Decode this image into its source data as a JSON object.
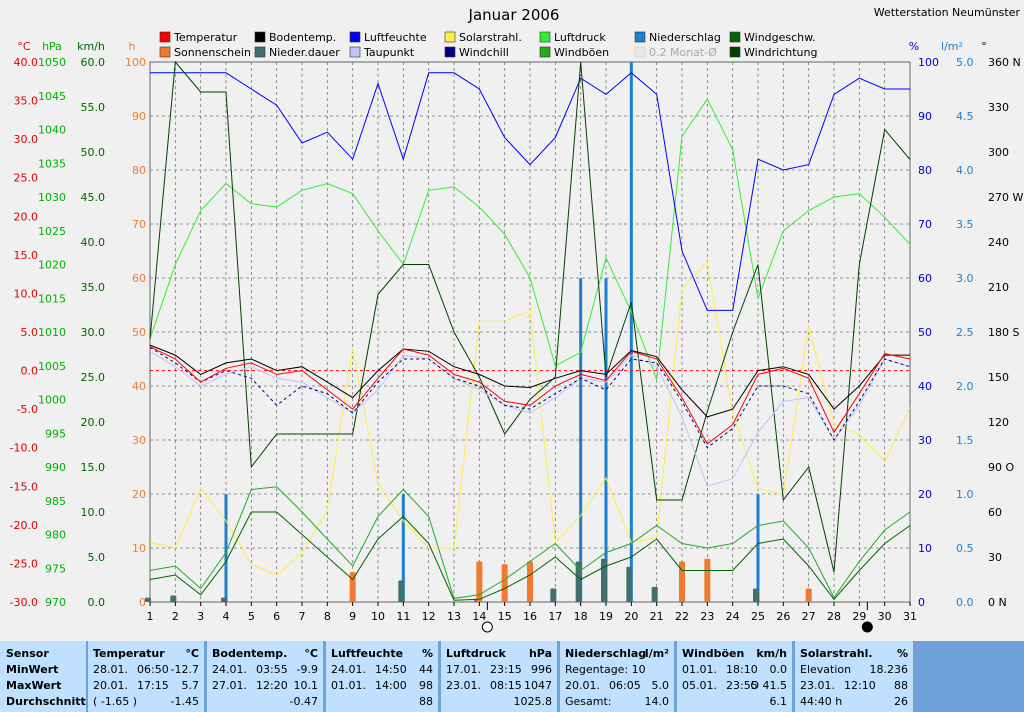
{
  "title": "Januar 2006",
  "station": "Wetterstation Neumünster",
  "left_axes": [
    {
      "unit": "°C",
      "color": "#e00000",
      "ticks": [
        "40.0",
        "35.0",
        "30.0",
        "25.0",
        "20.0",
        "15.0",
        "10.0",
        "5.0",
        "0.0",
        "-5.0",
        "-10.0",
        "-15.0",
        "-20.0",
        "-25.0",
        "-30.0"
      ]
    },
    {
      "unit": "hPa",
      "color": "#00b000",
      "ticks": [
        "1050",
        "1045",
        "1040",
        "1035",
        "1030",
        "1025",
        "1020",
        "1015",
        "1010",
        "1005",
        "1000",
        "995",
        "990",
        "985",
        "980",
        "975",
        "970"
      ]
    },
    {
      "unit": "km/h",
      "color": "#006400",
      "ticks": [
        "60.0",
        "55.0",
        "50.0",
        "45.0",
        "40.0",
        "35.0",
        "30.0",
        "25.0",
        "20.0",
        "15.0",
        "10.0",
        "5.0",
        "0.0"
      ]
    },
    {
      "unit": "h",
      "color": "#f07a30",
      "ticks": [
        "100",
        "90",
        "80",
        "70",
        "60",
        "50",
        "40",
        "30",
        "20",
        "10",
        "0"
      ]
    }
  ],
  "right_axes": [
    {
      "unit": "%",
      "color": "#0000cc",
      "ticks": [
        "100",
        "90",
        "80",
        "70",
        "60",
        "50",
        "40",
        "30",
        "20",
        "10",
        "0"
      ]
    },
    {
      "unit": "l/m²",
      "color": "#1e7fd0",
      "ticks": [
        "5.0",
        "4.5",
        "4.0",
        "3.5",
        "3.0",
        "2.5",
        "2.0",
        "1.5",
        "1.0",
        "0.5",
        "0.0"
      ]
    },
    {
      "unit": "°",
      "color": "#000000",
      "ticks": [
        "360 N",
        "330",
        "300",
        "270 W",
        "240",
        "210",
        "180 S",
        "150",
        "120",
        "90 O",
        "60",
        "30",
        "0 N"
      ]
    }
  ],
  "legend": [
    {
      "label": "Temperatur",
      "color": "#ff0000"
    },
    {
      "label": "Sonnenschein",
      "color": "#f07a30"
    },
    {
      "label": "Bodentemp.",
      "color": "#000000"
    },
    {
      "label": "Nieder.dauer",
      "color": "#407070"
    },
    {
      "label": "Luftfeuchte",
      "color": "#0000ff"
    },
    {
      "label": "Taupunkt",
      "color": "#c0c0ff"
    },
    {
      "label": "Solarstrahl.",
      "color": "#ffee44"
    },
    {
      "label": "Windchill",
      "color": "#000080"
    },
    {
      "label": "Luftdruck",
      "color": "#33ee33"
    },
    {
      "label": "Windböen",
      "color": "#22aa22"
    },
    {
      "label": "Niederschlag",
      "color": "#1e7fd0"
    },
    {
      "label": "0.2 Monat-Ø",
      "color": "#e8e8e8"
    },
    {
      "label": "Windgeschw.",
      "color": "#006400"
    },
    {
      "label": "Windrichtung",
      "color": "#004000"
    }
  ],
  "chart_data": {
    "type": "line",
    "title": "Januar 2006",
    "x": [
      1,
      2,
      3,
      4,
      5,
      6,
      7,
      8,
      9,
      10,
      11,
      12,
      13,
      14,
      15,
      16,
      17,
      18,
      19,
      20,
      21,
      22,
      23,
      24,
      25,
      26,
      27,
      28,
      29,
      30,
      31
    ],
    "xlim": [
      1,
      31
    ],
    "series": [
      {
        "name": "Temperatur",
        "unit": "°C",
        "axis": "temp",
        "ylim": [
          -30,
          40
        ],
        "color": "#ff0000",
        "values": [
          3.1,
          1.5,
          -1.5,
          0.3,
          1.0,
          -0.5,
          0.0,
          -2.5,
          -5.0,
          -1.0,
          2.8,
          2.0,
          -0.5,
          -1.5,
          -4.0,
          -4.5,
          -2.0,
          -0.5,
          -1.3,
          2.5,
          1.5,
          -3.5,
          -9.5,
          -7.0,
          -0.5,
          0.3,
          -1.0,
          -8.0,
          -3.0,
          2.2,
          1.5
        ]
      },
      {
        "name": "Bodentemp.",
        "unit": "°C",
        "axis": "temp",
        "ylim": [
          -30,
          40
        ],
        "color": "#000000",
        "values": [
          3.3,
          2.0,
          -0.5,
          1.0,
          1.5,
          0.0,
          0.5,
          -1.5,
          -3.5,
          0.0,
          2.8,
          2.5,
          0.5,
          -0.5,
          -2.0,
          -2.2,
          -1.0,
          0.0,
          -0.5,
          2.6,
          1.8,
          -2.5,
          -6.0,
          -5.0,
          0.0,
          0.5,
          -0.5,
          -5.0,
          -2.0,
          2.0,
          2.0
        ]
      },
      {
        "name": "Windchill",
        "unit": "°C",
        "axis": "temp",
        "ylim": [
          -30,
          40
        ],
        "color": "#000080",
        "values": [
          3.0,
          1.0,
          -1.5,
          0.0,
          -1.0,
          -4.5,
          -2.0,
          -3.0,
          -5.5,
          -1.5,
          1.5,
          1.5,
          -1.0,
          -2.0,
          -4.5,
          -5.0,
          -3.0,
          -1.0,
          -2.5,
          1.5,
          1.0,
          -4.0,
          -10.0,
          -7.5,
          -2.0,
          -2.0,
          -3.0,
          -9.0,
          -4.0,
          1.5,
          0.5
        ]
      },
      {
        "name": "Taupunkt",
        "unit": "°C",
        "axis": "temp",
        "ylim": [
          -30,
          40
        ],
        "color": "#c0c0ff",
        "values": [
          2.5,
          0.5,
          -2.0,
          -0.5,
          0.5,
          -1.0,
          -1.5,
          -3.5,
          -5.5,
          -2.5,
          2.0,
          1.5,
          -1.0,
          -2.5,
          -4.5,
          -5.5,
          -3.5,
          -1.0,
          -1.5,
          2.0,
          0.5,
          -6.0,
          -15.0,
          -14.0,
          -8.0,
          -4.0,
          -3.5,
          -9.0,
          -4.5,
          1.5,
          0.5
        ]
      },
      {
        "name": "Luftfeuchte",
        "unit": "%",
        "axis": "humidity",
        "ylim": [
          0,
          100
        ],
        "color": "#0000ff",
        "values": [
          98,
          98,
          98,
          98,
          95,
          92,
          85,
          87,
          82,
          96,
          82,
          98,
          98,
          95,
          86,
          81,
          86,
          97,
          94,
          98,
          94,
          65,
          54,
          54,
          82,
          80,
          81,
          94,
          97,
          95,
          95
        ]
      },
      {
        "name": "Luftdruck",
        "unit": "hPa",
        "axis": "pressure",
        "ylim": [
          970,
          1050
        ],
        "color": "#33ee33",
        "values": [
          1009,
          1020,
          1028,
          1032,
          1029,
          1028.5,
          1031,
          1032,
          1030.5,
          1025,
          1020,
          1031,
          1031.5,
          1028.5,
          1024.5,
          1018,
          1005,
          1007,
          1021,
          1013,
          1003,
          1039,
          1044.5,
          1037,
          1015,
          1025,
          1028,
          1030,
          1030.5,
          1027,
          1023
        ]
      },
      {
        "name": "Solarstrahl.",
        "unit": "%",
        "axis": "humidity",
        "ylim": [
          0,
          100
        ],
        "color": "#ffee44",
        "values": [
          11,
          10,
          21,
          15,
          7,
          5,
          9,
          17,
          47,
          22,
          15,
          10,
          10,
          52,
          52,
          54,
          11,
          16,
          23,
          11,
          12,
          58,
          63,
          35,
          21,
          20,
          51,
          33,
          31,
          26,
          36
        ]
      },
      {
        "name": "Windgeschw.",
        "unit": "km/h",
        "axis": "wind",
        "ylim": [
          0,
          60
        ],
        "color": "#006400",
        "values": [
          2.5,
          3.0,
          0.8,
          4.5,
          10.0,
          10.0,
          7.5,
          5.0,
          2.5,
          7.0,
          9.5,
          6.5,
          0.2,
          0.3,
          1.5,
          3.0,
          5.0,
          2.5,
          4.0,
          5.0,
          7.0,
          3.5,
          3.5,
          3.5,
          6.5,
          7.0,
          4.0,
          0.3,
          3.5,
          6.5,
          8.5
        ]
      },
      {
        "name": "Windböen",
        "unit": "km/h",
        "axis": "wind",
        "ylim": [
          0,
          60
        ],
        "color": "#22aa22",
        "values": [
          3.5,
          4.0,
          1.5,
          5.5,
          12.5,
          12.8,
          10.0,
          7.0,
          4.0,
          9.5,
          12.5,
          9.5,
          0.4,
          0.8,
          2.5,
          4.5,
          6.5,
          3.5,
          5.5,
          6.5,
          8.5,
          6.5,
          6.0,
          6.5,
          8.5,
          9.0,
          6.0,
          0.5,
          4.5,
          8.0,
          10.0
        ]
      },
      {
        "name": "Windrichtung",
        "unit": "°",
        "axis": "direction",
        "ylim": [
          0,
          360
        ],
        "color": "#004000",
        "values": [
          175,
          360,
          340,
          340,
          90,
          112,
          112,
          112,
          112,
          205,
          225,
          225,
          180,
          150,
          112,
          135,
          150,
          360,
          150,
          200,
          68,
          68,
          127,
          180,
          225,
          68,
          90,
          20,
          225,
          315,
          295
        ]
      },
      {
        "name": "Niederschlag",
        "unit": "l/m²",
        "axis": "precip",
        "ylim": [
          0,
          5
        ],
        "color": "#1e7fd0",
        "type": "bar",
        "values": [
          0,
          0,
          0,
          1.0,
          0,
          0,
          0,
          0,
          0,
          0,
          1.0,
          0,
          0,
          0,
          0,
          0,
          0,
          3.0,
          3.0,
          5.0,
          0,
          0,
          0,
          0,
          1.0,
          0,
          0,
          0,
          0,
          0,
          0
        ]
      },
      {
        "name": "Nieder.dauer",
        "unit": "h",
        "axis": "hours",
        "ylim": [
          0,
          100
        ],
        "color": "#407070",
        "type": "bar",
        "values": [
          0.8,
          1.2,
          0,
          0.8,
          0,
          0,
          0,
          0,
          0,
          0,
          4,
          0,
          0,
          0.6,
          0,
          0,
          2.5,
          7.5,
          8,
          6.5,
          2.8,
          0,
          0,
          0,
          2.5,
          0,
          0,
          0,
          0,
          0,
          0
        ]
      },
      {
        "name": "Sonnenschein",
        "unit": "h",
        "axis": "hours",
        "ylim": [
          0,
          100
        ],
        "color": "#f07a30",
        "type": "bar",
        "values": [
          0,
          0,
          0,
          0,
          0,
          0,
          0,
          0,
          5.5,
          0,
          0,
          0,
          0,
          7.5,
          7,
          7.5,
          0,
          0,
          0,
          0,
          0,
          7.5,
          8,
          0,
          0,
          0,
          2.5,
          0,
          0,
          0,
          0
        ]
      }
    ],
    "reference_line": {
      "value": 0,
      "axis": "temp",
      "color": "#ff0000"
    },
    "moon_markers": [
      {
        "day": 14,
        "phase": "full"
      },
      {
        "day": 29,
        "phase": "new"
      }
    ],
    "grid": true
  },
  "stats": {
    "sensor": {
      "header": "Sensor",
      "rows": [
        "MinWert",
        "MaxWert",
        "Durchschnitt"
      ]
    },
    "blocks": [
      {
        "name": "Temperatur",
        "unit": "°C",
        "rows": [
          [
            "28.01.",
            "06:50",
            "-12.7"
          ],
          [
            "20.01.",
            "17:15",
            "5.7"
          ],
          [
            "( -1.65 )",
            "",
            "-1.45"
          ]
        ]
      },
      {
        "name": "Bodentemp.",
        "unit": "°C",
        "rows": [
          [
            "24.01.",
            "03:55",
            "-9.9"
          ],
          [
            "27.01.",
            "12:20",
            "10.1"
          ],
          [
            "",
            "",
            "-0.47"
          ]
        ]
      },
      {
        "name": "Luftfeuchte",
        "unit": "%",
        "rows": [
          [
            "24.01.",
            "14:50",
            "44"
          ],
          [
            "01.01.",
            "14:00",
            "98"
          ],
          [
            "",
            "",
            "88"
          ]
        ]
      },
      {
        "name": "Luftdruck",
        "unit": "hPa",
        "rows": [
          [
            "17.01.",
            "23:15",
            "996"
          ],
          [
            "23.01.",
            "08:15",
            "1047"
          ],
          [
            "",
            "",
            "1025.8"
          ]
        ]
      },
      {
        "name": "Niederschlag",
        "unit": "l/m²",
        "rows": [
          [
            "Regentage: 10",
            "",
            ""
          ],
          [
            "20.01.",
            "06:05",
            "5.0"
          ],
          [
            "Gesamt:",
            "",
            "14.0"
          ]
        ]
      },
      {
        "name": "Windböen",
        "unit": "km/h",
        "rows": [
          [
            "01.01.",
            "18:10",
            "0.0"
          ],
          [
            "05.01.",
            "23:55",
            "O 41.5"
          ],
          [
            "",
            "",
            "6.1"
          ]
        ]
      },
      {
        "name": "Solarstrahl.",
        "unit": "%",
        "rows": [
          [
            "Elevation",
            "",
            "18.236"
          ],
          [
            "23.01.",
            "12:10",
            "88"
          ],
          [
            "44:40 h",
            "",
            "26"
          ]
        ]
      }
    ]
  }
}
